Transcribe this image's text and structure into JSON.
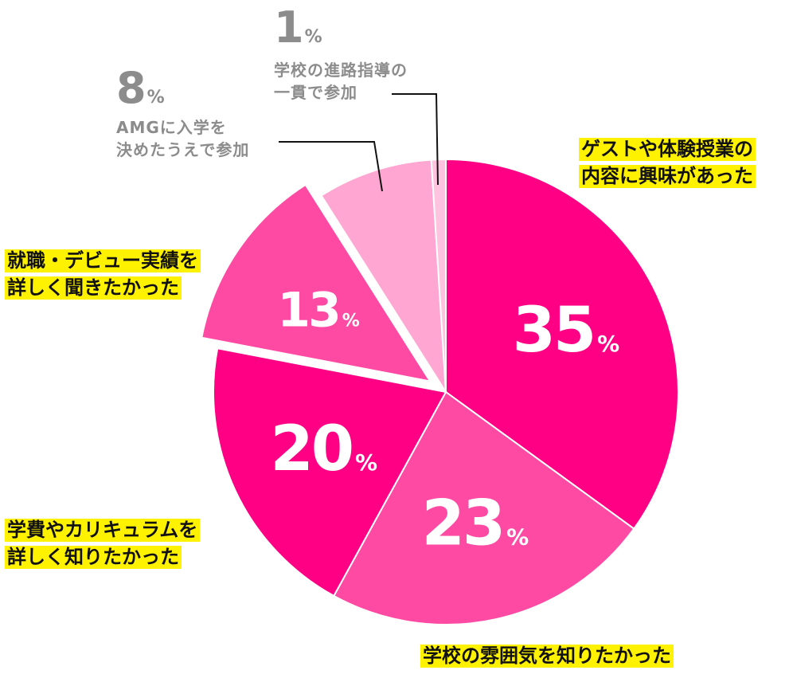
{
  "chart_data": {
    "type": "pie",
    "start_angle_deg": 0,
    "direction": "clockwise",
    "slices": [
      {
        "label": "ゲストや体験授業の内容に興味があった",
        "label_lines": [
          "ゲストや体験授業の",
          "内容に興味があった"
        ],
        "value": 35,
        "value_text": "35",
        "unit": "%",
        "color": "#ff0085"
      },
      {
        "label": "学校の雰囲気を知りたかった",
        "label_lines": [
          "学校の雰囲気を知りたかった"
        ],
        "value": 23,
        "value_text": "23",
        "unit": "%",
        "color": "#ff4aa3"
      },
      {
        "label": "学費やカリキュラムを詳しく知りたかった",
        "label_lines": [
          "学費やカリキュラムを",
          "詳しく知りたかった"
        ],
        "value": 20,
        "value_text": "20",
        "unit": "%",
        "color": "#ff0085"
      },
      {
        "label": "就職・デビュー実績を詳しく聞きたかった",
        "label_lines": [
          "就職・デビュー実績を",
          "詳しく聞きたかった"
        ],
        "value": 13,
        "value_text": "13",
        "unit": "%",
        "color": "#ff4aa3"
      },
      {
        "label": "AMGに入学を決めたうえで参加",
        "label_lines": [
          "AMGに入学を",
          "決めたうえで参加"
        ],
        "value": 8,
        "value_text": "8",
        "unit": "%",
        "color": "#ffa7d2"
      },
      {
        "label": "学校の進路指導の一貫で参加",
        "label_lines": [
          "学校の進路指導の",
          "一貫で参加"
        ],
        "value": 1,
        "value_text": "1",
        "unit": "%",
        "color": "#ffc3e0"
      }
    ]
  }
}
